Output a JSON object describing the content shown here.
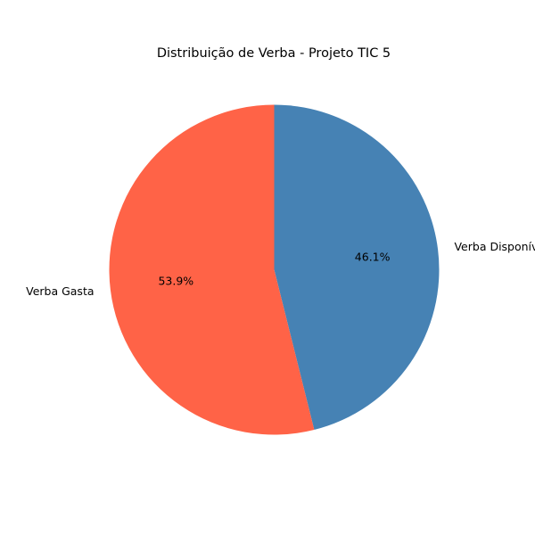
{
  "chart_data": {
    "type": "pie",
    "title": "Distribuição de Verba - Projeto TIC 5",
    "slices": [
      {
        "label": "Verba Disponível",
        "value": 46.1,
        "pct_label": "46.1%",
        "color": "#4682b4"
      },
      {
        "label": "Verba Gasta",
        "value": 53.9,
        "pct_label": "53.9%",
        "color": "#ff6347"
      }
    ],
    "start_angle_deg": 90,
    "direction": "clockwise",
    "legend": "none"
  }
}
